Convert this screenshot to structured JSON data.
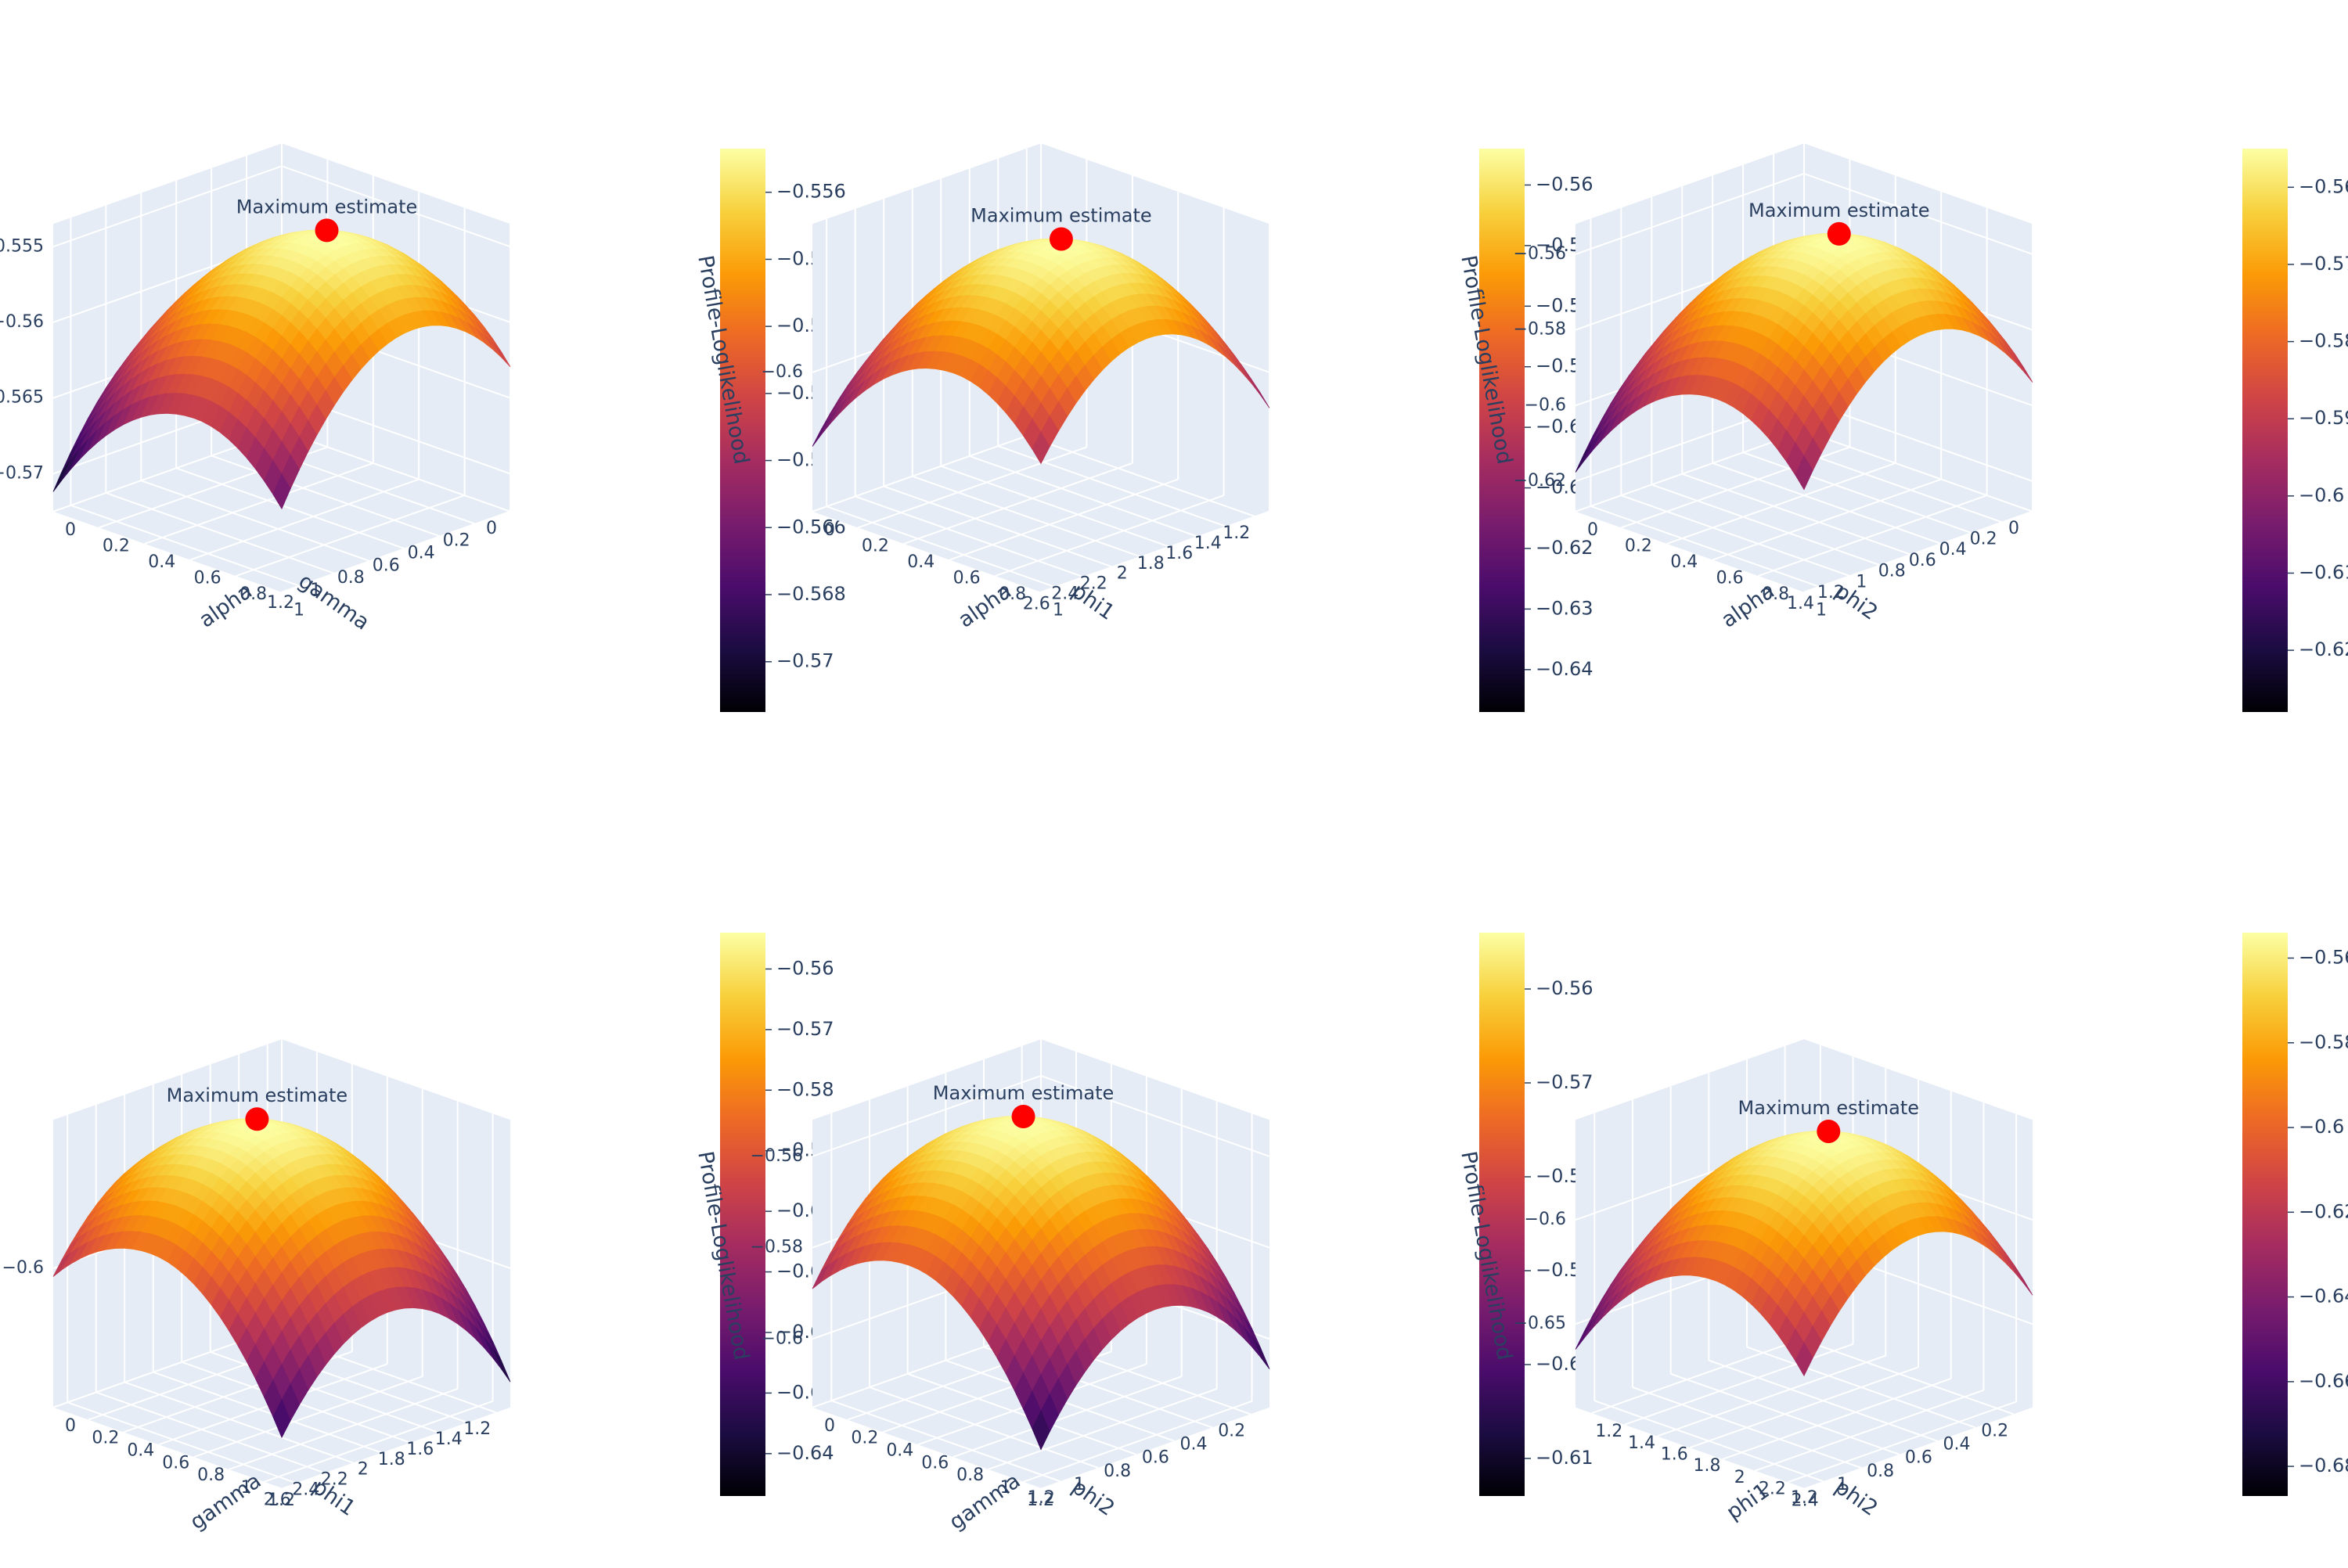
{
  "colorscale_name": "inferno",
  "colorscale": [
    "#000004",
    "#1b0c41",
    "#4a0c6b",
    "#781c6d",
    "#a52c60",
    "#cf4446",
    "#ed6925",
    "#fb9b06",
    "#f7d13d",
    "#fcffa4"
  ],
  "pane_color": "#e5ecf6",
  "grid_color": "#ffffff",
  "text_color": "#2a3f5f",
  "marker_color": "#ff0000",
  "chart_data": [
    {
      "type": "surface3d",
      "xlabel": "alpha",
      "ylabel": "gamma",
      "zlabel": "Profile-Loglikelihood",
      "x_ticks": [
        "0",
        "0.2",
        "0.4",
        "0.6",
        "0.8",
        "1"
      ],
      "y_ticks": [
        "0",
        "0.2",
        "0.4",
        "0.6",
        "0.8",
        "1",
        "1.2"
      ],
      "z_ticks": [
        "−0.57",
        "−0.565",
        "−0.56",
        "−0.555"
      ],
      "x_range": [
        0,
        1
      ],
      "y_range": [
        0,
        1.3
      ],
      "z_range": [
        -0.5725,
        -0.5535
      ],
      "colorbar_ticks": [
        "−0.57",
        "−0.568",
        "−0.566",
        "−0.564",
        "−0.562",
        "−0.56",
        "−0.558",
        "−0.556"
      ],
      "colorbar_range": [
        -0.5715,
        -0.5547
      ],
      "max_estimate": {
        "label": "Maximum estimate",
        "x": 0.62,
        "y": 0.55,
        "z": -0.5555
      }
    },
    {
      "type": "surface3d",
      "xlabel": "alpha",
      "ylabel": "phi1",
      "zlabel": "Profile-Loglikelihood",
      "x_ticks": [
        "0",
        "0.2",
        "0.4",
        "0.6",
        "0.8",
        "1"
      ],
      "y_ticks": [
        "1.2",
        "1.4",
        "1.6",
        "1.8",
        "2",
        "2.2",
        "2.4",
        "2.6"
      ],
      "z_ticks": [
        "−0.6"
      ],
      "x_range": [
        0,
        1
      ],
      "y_range": [
        1.1,
        2.7
      ],
      "z_range": [
        -0.645,
        -0.552
      ],
      "colorbar_ticks": [
        "−0.64",
        "−0.63",
        "−0.62",
        "−0.61",
        "−0.6",
        "−0.59",
        "−0.58",
        "−0.57",
        "−0.56"
      ],
      "colorbar_range": [
        -0.647,
        -0.554
      ],
      "max_estimate": {
        "label": "Maximum estimate",
        "x": 0.62,
        "y": 1.95,
        "z": -0.556
      }
    },
    {
      "type": "surface3d",
      "xlabel": "alpha",
      "ylabel": "phi2",
      "zlabel": "Profile-Loglikelihood",
      "x_ticks": [
        "0",
        "0.2",
        "0.4",
        "0.6",
        "0.8",
        "1"
      ],
      "y_ticks": [
        "0",
        "0.2",
        "0.4",
        "0.6",
        "0.8",
        "1",
        "1.2",
        "1.4"
      ],
      "z_ticks": [
        "−0.62",
        "−0.6",
        "−0.58",
        "−0.56"
      ],
      "x_range": [
        0,
        1
      ],
      "y_range": [
        0,
        1.5
      ],
      "z_range": [
        -0.628,
        -0.552
      ],
      "colorbar_ticks": [
        "−0.62",
        "−0.61",
        "−0.6",
        "−0.59",
        "−0.58",
        "−0.57",
        "−0.56"
      ],
      "colorbar_range": [
        -0.628,
        -0.555
      ],
      "max_estimate": {
        "label": "Maximum estimate",
        "x": 0.62,
        "y": 0.7,
        "z": -0.556
      }
    },
    {
      "type": "surface3d",
      "xlabel": "gamma",
      "ylabel": "phi1",
      "zlabel": "Profile-Loglikelihood",
      "x_ticks": [
        "0",
        "0.2",
        "0.4",
        "0.6",
        "0.8",
        "1",
        "1.2"
      ],
      "y_ticks": [
        "1.2",
        "1.4",
        "1.6",
        "1.8",
        "2",
        "2.2",
        "2.4",
        "2.6"
      ],
      "z_ticks": [
        "−0.6"
      ],
      "x_range": [
        0,
        1.3
      ],
      "y_range": [
        1.1,
        2.7
      ],
      "z_range": [
        -0.645,
        -0.552
      ],
      "colorbar_ticks": [
        "−0.64",
        "−0.63",
        "−0.62",
        "−0.61",
        "−0.6",
        "−0.59",
        "−0.58",
        "−0.57",
        "−0.56"
      ],
      "colorbar_range": [
        -0.647,
        -0.554
      ],
      "max_estimate": {
        "label": "Maximum estimate",
        "x": 0.55,
        "y": 1.95,
        "z": -0.556
      }
    },
    {
      "type": "surface3d",
      "xlabel": "gamma",
      "ylabel": "phi2",
      "zlabel": "Profile-Loglikelihood",
      "x_ticks": [
        "0",
        "0.2",
        "0.4",
        "0.6",
        "0.8",
        "1",
        "1.2"
      ],
      "y_ticks": [
        "0.2",
        "0.4",
        "0.6",
        "0.8",
        "1",
        "1.2"
      ],
      "z_ticks": [
        "−0.6",
        "−0.58",
        "−0.56"
      ],
      "x_range": [
        0,
        1.3
      ],
      "y_range": [
        0.1,
        1.3
      ],
      "z_range": [
        -0.615,
        -0.552
      ],
      "colorbar_ticks": [
        "−0.61",
        "−0.6",
        "−0.59",
        "−0.58",
        "−0.57",
        "−0.56"
      ],
      "colorbar_range": [
        -0.614,
        -0.554
      ],
      "max_estimate": {
        "label": "Maximum estimate",
        "x": 0.55,
        "y": 0.7,
        "z": -0.556
      }
    },
    {
      "type": "surface3d",
      "xlabel": "phi1",
      "ylabel": "phi2",
      "zlabel": "Profile-Loglikelihood",
      "x_ticks": [
        "1.2",
        "1.4",
        "1.6",
        "1.8",
        "2",
        "2.2",
        "2.4"
      ],
      "y_ticks": [
        "0.2",
        "0.4",
        "0.6",
        "0.8",
        "1",
        "1.2"
      ],
      "z_ticks": [
        "−0.65",
        "−0.6"
      ],
      "x_range": [
        1.1,
        2.5
      ],
      "y_range": [
        0.1,
        1.3
      ],
      "z_range": [
        -0.69,
        -0.552
      ],
      "colorbar_ticks": [
        "−0.68",
        "−0.66",
        "−0.64",
        "−0.62",
        "−0.6",
        "−0.58",
        "−0.56"
      ],
      "colorbar_range": [
        -0.687,
        -0.554
      ],
      "max_estimate": {
        "label": "Maximum estimate",
        "x": 1.95,
        "y": 0.7,
        "z": -0.556
      }
    }
  ]
}
